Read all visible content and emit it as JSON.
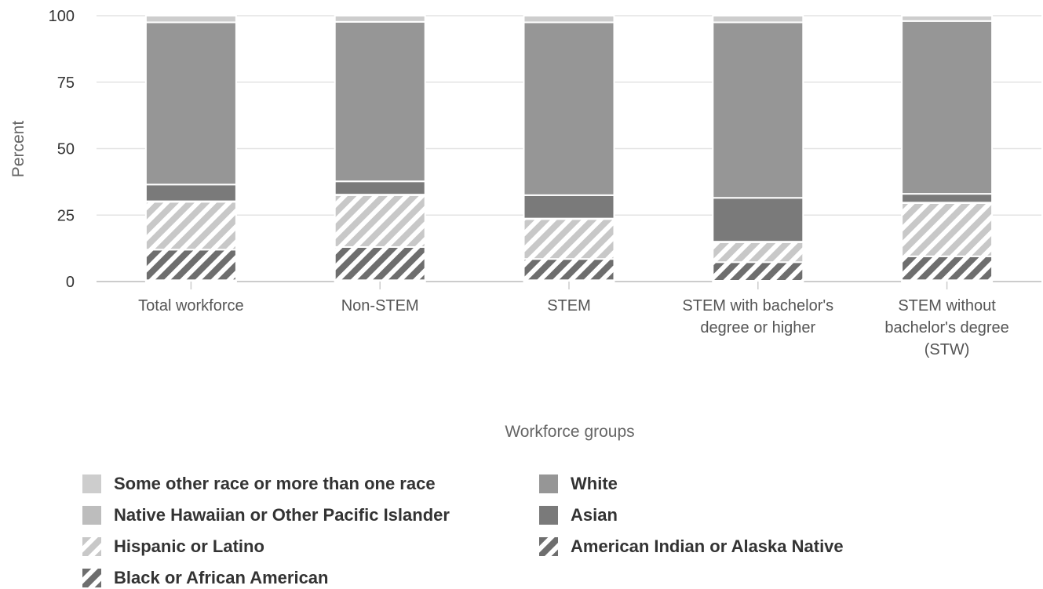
{
  "chart_data": {
    "type": "bar",
    "stacked": true,
    "xlabel": "Workforce groups",
    "ylabel": "Percent",
    "ylim": [
      0,
      100
    ],
    "yticks": [
      0,
      25,
      50,
      75,
      100
    ],
    "grid": true,
    "legend_position": "bottom",
    "categories": [
      [
        "Total workforce"
      ],
      [
        "Non-STEM"
      ],
      [
        "STEM"
      ],
      [
        "STEM with bachelor's",
        "degree or higher"
      ],
      [
        "STEM without",
        "bachelor's degree",
        "(STW)"
      ]
    ],
    "series": [
      {
        "name": "American Indian or Alaska Native",
        "values": [
          0.5,
          0.5,
          0.5,
          0.3,
          0.5
        ],
        "color": "#6e6e6e",
        "pattern": "hatch"
      },
      {
        "name": "Black or African American",
        "values": [
          11.5,
          12.5,
          8,
          7,
          9
        ],
        "color": "#6e6e6e",
        "pattern": "hatch"
      },
      {
        "name": "Hispanic or Latino",
        "values": [
          18,
          19.5,
          15,
          7.5,
          20
        ],
        "color": "#c8c8c8",
        "pattern": "hatch"
      },
      {
        "name": "Native Hawaiian or Other Pacific Islander",
        "values": [
          0.2,
          0.2,
          0.2,
          0.2,
          0.2
        ],
        "color": "#bdbdbd",
        "pattern": "solid"
      },
      {
        "name": "Asian",
        "values": [
          6.3,
          5,
          8.8,
          16.5,
          3.3
        ],
        "color": "#7a7a7a",
        "pattern": "solid"
      },
      {
        "name": "White",
        "values": [
          61,
          60,
          65,
          66,
          65
        ],
        "color": "#969696",
        "pattern": "solid"
      },
      {
        "name": "Some other race or more than one race",
        "values": [
          2.5,
          2.3,
          2.5,
          2.5,
          2
        ],
        "color": "#cdcdcd",
        "pattern": "solid"
      }
    ]
  },
  "legend": [
    {
      "label": "Some other race or more than one race",
      "color": "#cdcdcd",
      "pattern": "solid"
    },
    {
      "label": "White",
      "color": "#969696",
      "pattern": "solid"
    },
    {
      "label": "Native Hawaiian or Other Pacific Islander",
      "color": "#bdbdbd",
      "pattern": "solid"
    },
    {
      "label": "Asian",
      "color": "#7a7a7a",
      "pattern": "solid"
    },
    {
      "label": "Hispanic or Latino",
      "color": "#c8c8c8",
      "pattern": "hatch"
    },
    {
      "label": "American Indian or Alaska Native",
      "color": "#6e6e6e",
      "pattern": "hatch"
    },
    {
      "label": "Black or African American",
      "color": "#6e6e6e",
      "pattern": "hatch"
    }
  ]
}
